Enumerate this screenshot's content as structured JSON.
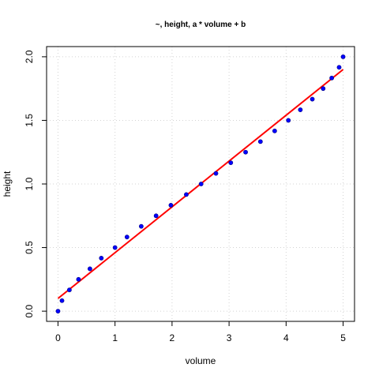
{
  "chart_data": {
    "type": "scatter",
    "title": "~, height, a * volume + b",
    "xlabel": "volume",
    "ylabel": "height",
    "xlim": [
      0,
      5
    ],
    "ylim": [
      0,
      2
    ],
    "xticks": [
      "0",
      "1",
      "2",
      "3",
      "4",
      "5"
    ],
    "yticks": [
      "0.0",
      "0.5",
      "1.0",
      "1.5",
      "2.0"
    ],
    "grid": true,
    "colors": {
      "points": "#0000ff",
      "fit_line": "#ff0000",
      "grid": "#d3d3d3"
    },
    "series": [
      {
        "type": "scatter",
        "x": [
          0.0,
          0.07,
          0.2,
          0.36,
          0.56,
          0.76,
          1.0,
          1.21,
          1.46,
          1.72,
          1.98,
          2.25,
          2.51,
          2.77,
          3.03,
          3.29,
          3.55,
          3.8,
          4.04,
          4.25,
          4.46,
          4.65,
          4.8,
          4.93,
          5.0
        ],
        "y": [
          0.0,
          0.083,
          0.167,
          0.25,
          0.333,
          0.417,
          0.5,
          0.583,
          0.667,
          0.75,
          0.833,
          0.917,
          1.0,
          1.083,
          1.167,
          1.25,
          1.333,
          1.417,
          1.5,
          1.583,
          1.667,
          1.75,
          1.833,
          1.917,
          2.0
        ]
      },
      {
        "type": "line",
        "x": [
          0,
          5
        ],
        "y": [
          0.1,
          1.9
        ]
      }
    ]
  }
}
